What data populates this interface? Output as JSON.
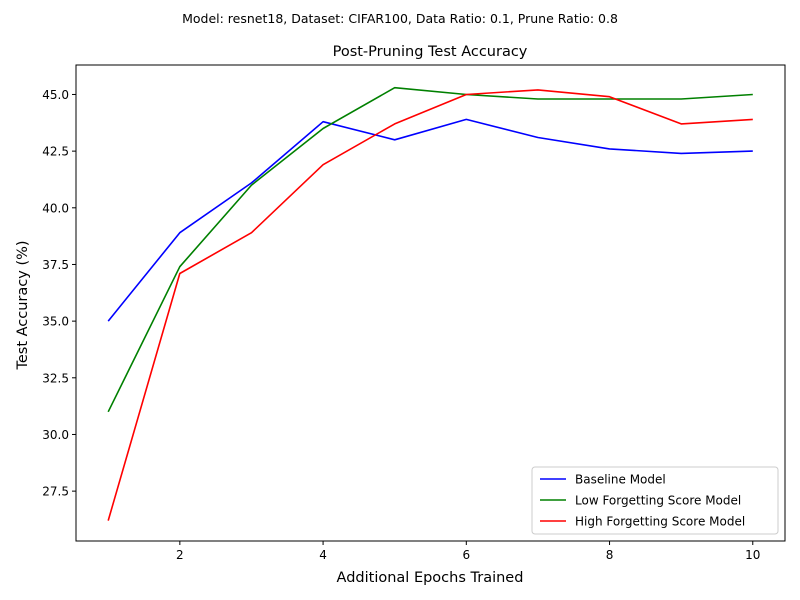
{
  "chart_data": {
    "type": "line",
    "suptitle": "Model: resnet18, Dataset: CIFAR100, Data Ratio: 0.1, Prune Ratio: 0.8",
    "title": "Post-Pruning Test Accuracy",
    "xlabel": "Additional Epochs Trained",
    "ylabel": "Test Accuracy (%)",
    "xlim": [
      0.55,
      10.45
    ],
    "ylim": [
      25.3,
      46.3
    ],
    "xticks": [
      2,
      4,
      6,
      8,
      10
    ],
    "yticks": [
      27.5,
      30.0,
      32.5,
      35.0,
      37.5,
      40.0,
      42.5,
      45.0
    ],
    "grid": false,
    "legend_position": "lower-right",
    "x": [
      1,
      2,
      3,
      4,
      5,
      6,
      7,
      8,
      9,
      10
    ],
    "series": [
      {
        "name": "Baseline Model",
        "color": "#0000ff",
        "values": [
          35.0,
          38.9,
          41.1,
          43.8,
          43.0,
          43.9,
          43.1,
          42.6,
          42.4,
          42.5
        ]
      },
      {
        "name": "Low Forgetting Score Model",
        "color": "#008000",
        "values": [
          31.0,
          37.4,
          41.0,
          43.5,
          45.3,
          45.0,
          44.8,
          44.8,
          44.8,
          45.0
        ]
      },
      {
        "name": "High Forgetting Score Model",
        "color": "#ff0000",
        "values": [
          26.2,
          37.1,
          38.9,
          41.9,
          43.7,
          45.0,
          45.2,
          44.9,
          43.7,
          43.9
        ]
      }
    ]
  }
}
